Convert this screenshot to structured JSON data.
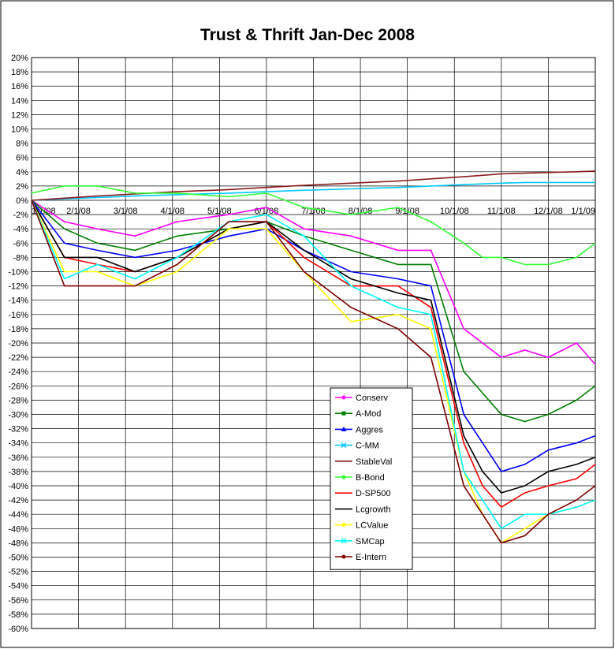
{
  "chart_data": {
    "type": "line",
    "title": "Trust & Thrift Jan-Dec 2008",
    "xlabel": "",
    "ylabel": "",
    "ylim": [
      -60,
      20
    ],
    "y_ticks": [
      "20%",
      "18%",
      "16%",
      "14%",
      "12%",
      "10%",
      "8%",
      "6%",
      "4%",
      "2%",
      "0%",
      "-2%",
      "-4%",
      "-6%",
      "-8%",
      "-10%",
      "-12%",
      "-14%",
      "-16%",
      "-18%",
      "-20%",
      "-22%",
      "-24%",
      "-26%",
      "-28%",
      "-30%",
      "-32%",
      "-34%",
      "-36%",
      "-38%",
      "-40%",
      "-42%",
      "-44%",
      "-46%",
      "-48%",
      "-50%",
      "-52%",
      "-54%",
      "-56%",
      "-58%",
      "-60%"
    ],
    "x_ticks": [
      "1/1/08",
      "2/1/08",
      "3/1/08",
      "4/1/08",
      "5/1/08",
      "6/1/08",
      "7/1/08",
      "8/1/08",
      "9/1/08",
      "10/1/08",
      "11/1/08",
      "12/1/08",
      "1/1/09"
    ],
    "x_month_index": [
      0,
      1,
      2,
      3,
      4,
      5,
      6,
      7,
      8,
      9,
      10,
      11,
      12
    ],
    "grid": true,
    "legend_position": "bottom-center",
    "series": [
      {
        "name": "Conserv",
        "color": "#ff00ff",
        "marker": "circle",
        "values": [
          0,
          -3,
          -4,
          -5,
          -3,
          -2,
          -1,
          -4,
          -5,
          -7,
          -7,
          -18,
          -20,
          -22,
          -21,
          -22,
          -20,
          -23
        ]
      },
      {
        "name": "A-Mod",
        "color": "#008000",
        "marker": "square",
        "values": [
          0,
          -4,
          -6,
          -7,
          -5,
          -4,
          -3,
          -5,
          -7,
          -9,
          -9,
          -24,
          -27,
          -30,
          -31,
          -30,
          -28,
          -26
        ]
      },
      {
        "name": "Aggres",
        "color": "#0000ff",
        "marker": "triangle",
        "values": [
          0,
          -6,
          -7,
          -8,
          -7,
          -5,
          -4,
          -7,
          -10,
          -11,
          -12,
          -30,
          -34,
          -38,
          -37,
          -35,
          -34,
          -33
        ]
      },
      {
        "name": "C-MM",
        "color": "#00c8ff",
        "marker": "x",
        "values": [
          0,
          0.2,
          0.4,
          0.6,
          0.8,
          1.0,
          1.2,
          1.4,
          1.6,
          1.8,
          2.0,
          2.2,
          2.3,
          2.4,
          2.5,
          2.5,
          2.5,
          2.5
        ]
      },
      {
        "name": "StableVal",
        "color": "#8b1a1a",
        "marker": "none",
        "values": [
          0,
          0.3,
          0.6,
          0.9,
          1.2,
          1.5,
          1.8,
          2.1,
          2.4,
          2.7,
          3.0,
          3.3,
          3.5,
          3.7,
          3.8,
          3.9,
          4.0,
          4.1
        ]
      },
      {
        "name": "B-Bond",
        "color": "#33ff33",
        "marker": "circle",
        "values": [
          1,
          2,
          2,
          1,
          1,
          0.5,
          1,
          -1,
          -2,
          -1,
          -3,
          -6,
          -8,
          -8,
          -9,
          -9,
          -8,
          -6
        ]
      },
      {
        "name": "D-SP500",
        "color": "#ff0000",
        "marker": "none",
        "values": [
          0,
          -8,
          -9,
          -10,
          -8,
          -4,
          -3,
          -8,
          -12,
          -12,
          -15,
          -34,
          -40,
          -43,
          -41,
          -40,
          -39,
          -37
        ]
      },
      {
        "name": "Lcgrowth",
        "color": "#000000",
        "marker": "none",
        "values": [
          0,
          -8,
          -8,
          -10,
          -8,
          -4,
          -3,
          -7,
          -11,
          -13,
          -14,
          -33,
          -38,
          -41,
          -40,
          -38,
          -37,
          -36
        ]
      },
      {
        "name": "LCValue",
        "color": "#ffff00",
        "marker": "circle",
        "values": [
          0,
          -10,
          -10,
          -12,
          -10,
          -4,
          -4,
          -10,
          -17,
          -16,
          -18,
          -38,
          -44,
          -48,
          -46,
          -44,
          -43,
          -42
        ]
      },
      {
        "name": "SMCap",
        "color": "#00ffff",
        "marker": "x",
        "values": [
          0,
          -11,
          -9,
          -11,
          -8,
          -3,
          -2,
          -5,
          -12,
          -15,
          -16,
          -38,
          -42,
          -46,
          -44,
          -44,
          -43,
          -42
        ]
      },
      {
        "name": "E-Intern",
        "color": "#800000",
        "marker": "circle",
        "values": [
          0,
          -12,
          -12,
          -12,
          -9,
          -3,
          -3,
          -10,
          -15,
          -18,
          -22,
          -40,
          -44,
          -48,
          -47,
          -44,
          -42,
          -40
        ]
      }
    ],
    "x_positions": [
      0,
      0.7,
      1.4,
      2.2,
      3.1,
      4.2,
      5.0,
      5.8,
      6.8,
      7.8,
      8.5,
      9.2,
      9.6,
      10.0,
      10.5,
      11.0,
      11.6,
      12.0
    ]
  }
}
